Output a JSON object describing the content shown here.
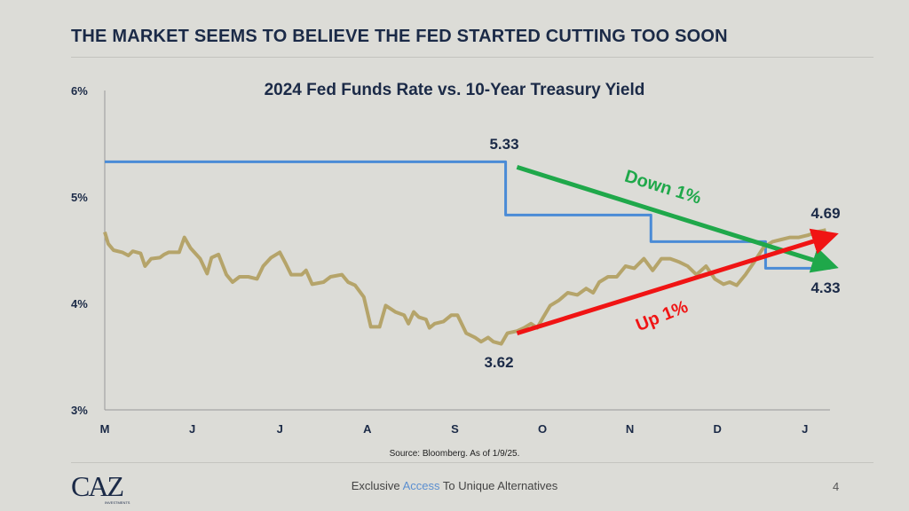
{
  "slide": {
    "title": "THE MARKET SEEMS TO BELIEVE THE FED STARTED CUTTING TOO SOON",
    "source": "Source: Bloomberg. As of 1/9/25.",
    "logo_text": "CAZ",
    "logo_sub": "INVESTMENTS",
    "tagline_pre": "Exclusive",
    "tagline_accent": "Access",
    "tagline_post": "To Unique Alternatives",
    "page_number": "4"
  },
  "chart_data": {
    "type": "line",
    "title": "2024 Fed Funds Rate vs. 10-Year Treasury Yield",
    "xlabel": "",
    "ylabel": "",
    "x_ticks": [
      "M",
      "J",
      "J",
      "A",
      "S",
      "O",
      "N",
      "D",
      "J"
    ],
    "x_range": [
      0,
      8.3
    ],
    "y_ticks": [
      "3%",
      "4%",
      "5%",
      "6%"
    ],
    "ylim": [
      3,
      6
    ],
    "grid": false,
    "colors": {
      "fed": "#4a8bd6",
      "yield": "#b5a46a",
      "down": "#1fa84a",
      "up": "#f01414"
    },
    "series": [
      {
        "name": "Fed Funds Rate",
        "points": [
          [
            0,
            5.33
          ],
          [
            4.58,
            5.33
          ],
          [
            4.58,
            4.83
          ],
          [
            6.24,
            4.83
          ],
          [
            6.24,
            4.58
          ],
          [
            7.55,
            4.58
          ],
          [
            7.55,
            4.33
          ],
          [
            8.29,
            4.33
          ]
        ]
      },
      {
        "name": "10-Year Treasury Yield",
        "points": [
          [
            0,
            4.67
          ],
          [
            0.04,
            4.56
          ],
          [
            0.1,
            4.5
          ],
          [
            0.2,
            4.48
          ],
          [
            0.27,
            4.45
          ],
          [
            0.32,
            4.49
          ],
          [
            0.41,
            4.47
          ],
          [
            0.46,
            4.35
          ],
          [
            0.53,
            4.42
          ],
          [
            0.63,
            4.43
          ],
          [
            0.68,
            4.46
          ],
          [
            0.73,
            4.48
          ],
          [
            0.85,
            4.48
          ],
          [
            0.91,
            4.62
          ],
          [
            0.98,
            4.52
          ],
          [
            1.09,
            4.42
          ],
          [
            1.17,
            4.28
          ],
          [
            1.22,
            4.43
          ],
          [
            1.3,
            4.46
          ],
          [
            1.39,
            4.27
          ],
          [
            1.46,
            4.2
          ],
          [
            1.54,
            4.25
          ],
          [
            1.64,
            4.25
          ],
          [
            1.74,
            4.23
          ],
          [
            1.81,
            4.35
          ],
          [
            1.9,
            4.43
          ],
          [
            2.0,
            4.48
          ],
          [
            2.07,
            4.37
          ],
          [
            2.13,
            4.27
          ],
          [
            2.25,
            4.27
          ],
          [
            2.3,
            4.31
          ],
          [
            2.37,
            4.18
          ],
          [
            2.5,
            4.2
          ],
          [
            2.58,
            4.25
          ],
          [
            2.71,
            4.27
          ],
          [
            2.78,
            4.2
          ],
          [
            2.86,
            4.17
          ],
          [
            2.96,
            4.06
          ],
          [
            3.04,
            3.78
          ],
          [
            3.14,
            3.78
          ],
          [
            3.21,
            3.98
          ],
          [
            3.32,
            3.92
          ],
          [
            3.42,
            3.89
          ],
          [
            3.47,
            3.81
          ],
          [
            3.53,
            3.92
          ],
          [
            3.59,
            3.87
          ],
          [
            3.67,
            3.85
          ],
          [
            3.71,
            3.77
          ],
          [
            3.77,
            3.81
          ],
          [
            3.87,
            3.83
          ],
          [
            3.96,
            3.89
          ],
          [
            4.03,
            3.89
          ],
          [
            4.13,
            3.72
          ],
          [
            4.23,
            3.68
          ],
          [
            4.3,
            3.64
          ],
          [
            4.38,
            3.68
          ],
          [
            4.44,
            3.64
          ],
          [
            4.53,
            3.62
          ],
          [
            4.6,
            3.72
          ],
          [
            4.71,
            3.74
          ],
          [
            4.79,
            3.77
          ],
          [
            4.87,
            3.81
          ],
          [
            4.94,
            3.77
          ],
          [
            5.01,
            3.87
          ],
          [
            5.09,
            3.98
          ],
          [
            5.19,
            4.03
          ],
          [
            5.29,
            4.1
          ],
          [
            5.4,
            4.08
          ],
          [
            5.5,
            4.14
          ],
          [
            5.58,
            4.1
          ],
          [
            5.65,
            4.2
          ],
          [
            5.75,
            4.25
          ],
          [
            5.85,
            4.25
          ],
          [
            5.95,
            4.35
          ],
          [
            6.05,
            4.33
          ],
          [
            6.16,
            4.42
          ],
          [
            6.26,
            4.31
          ],
          [
            6.36,
            4.42
          ],
          [
            6.46,
            4.42
          ],
          [
            6.56,
            4.39
          ],
          [
            6.66,
            4.35
          ],
          [
            6.76,
            4.27
          ],
          [
            6.87,
            4.35
          ],
          [
            6.97,
            4.23
          ],
          [
            7.07,
            4.18
          ],
          [
            7.14,
            4.2
          ],
          [
            7.22,
            4.17
          ],
          [
            7.32,
            4.27
          ],
          [
            7.42,
            4.39
          ],
          [
            7.53,
            4.53
          ],
          [
            7.63,
            4.58
          ],
          [
            7.73,
            4.6
          ],
          [
            7.83,
            4.62
          ],
          [
            7.93,
            4.62
          ],
          [
            8.03,
            4.64
          ],
          [
            8.13,
            4.67
          ],
          [
            8.24,
            4.69
          ]
        ]
      }
    ],
    "annotations": [
      {
        "text": "5.33",
        "x": 4.58,
        "y": 5.33
      },
      {
        "text": "4.69",
        "x": 8.24,
        "y": 4.69
      },
      {
        "text": "4.33",
        "x": 8.29,
        "y": 4.33
      },
      {
        "text": "3.62",
        "x": 4.53,
        "y": 3.62
      },
      {
        "text": "Down 1%",
        "arrow_from": [
          4.71,
          5.28
        ],
        "arrow_to": [
          8.24,
          4.37
        ]
      },
      {
        "text": "Up 1%",
        "arrow_from": [
          4.71,
          3.72
        ],
        "arrow_to": [
          8.24,
          4.62
        ]
      }
    ]
  }
}
